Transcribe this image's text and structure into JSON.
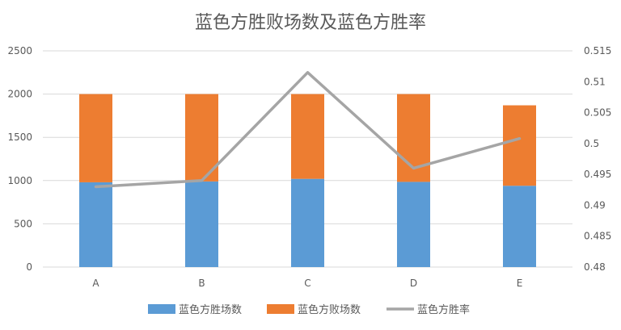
{
  "chart_data": {
    "type": "bar",
    "title": "蓝色方胜败场数及蓝色方胜率",
    "categories": [
      "A",
      "B",
      "C",
      "D",
      "E"
    ],
    "stacked": true,
    "series": [
      {
        "name": "蓝色方胜场数",
        "type": "bar",
        "axis": "left",
        "color": "#5B9BD5",
        "values": [
          980,
          990,
          1020,
          985,
          940
        ]
      },
      {
        "name": "蓝色方败场数",
        "type": "bar",
        "axis": "left",
        "color": "#ED7D31",
        "values": [
          1020,
          1010,
          980,
          1015,
          930
        ]
      },
      {
        "name": "蓝色方胜率",
        "type": "line",
        "axis": "right",
        "color": "#A5A5A5",
        "values": [
          0.493,
          0.494,
          0.5115,
          0.496,
          0.5008
        ]
      }
    ],
    "y_left": {
      "min": 0,
      "max": 2500,
      "ticks": [
        "0",
        "500",
        "1000",
        "1500",
        "2000",
        "2500"
      ]
    },
    "y_right": {
      "min": 0.48,
      "max": 0.515,
      "ticks": [
        "0.48",
        "0.485",
        "0.49",
        "0.495",
        "0.5",
        "0.505",
        "0.51",
        "0.515"
      ]
    },
    "grid": true,
    "legend_position": "bottom"
  }
}
